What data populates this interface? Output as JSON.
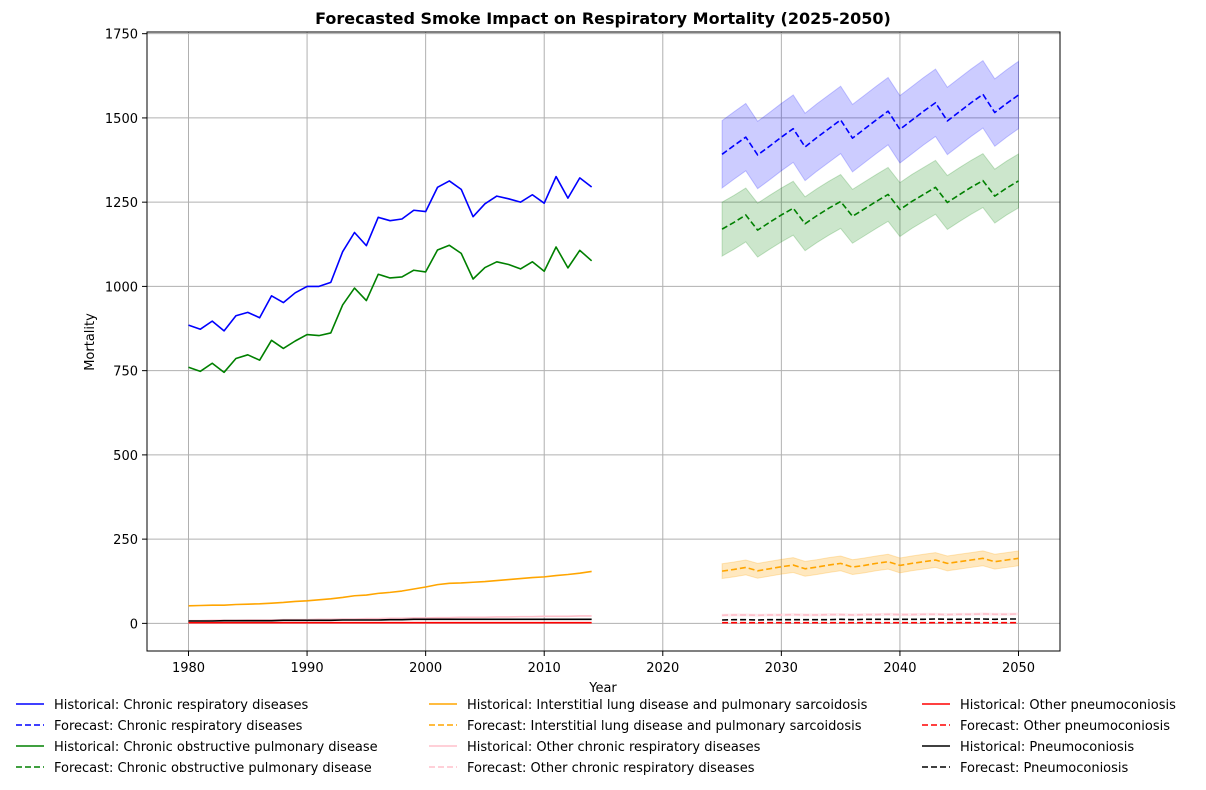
{
  "chart_data": {
    "type": "line",
    "title": "Forecasted Smoke Impact on Respiratory Mortality (2025-2050)",
    "xlabel": "Year",
    "ylabel": "Mortality",
    "xlim": [
      1976.5,
      2053.5
    ],
    "ylim": [
      -82,
      1755
    ],
    "xticks": [
      1980,
      1990,
      2000,
      2010,
      2020,
      2030,
      2040,
      2050
    ],
    "yticks": [
      0,
      250,
      500,
      750,
      1000,
      1250,
      1500,
      1750
    ],
    "grid": true,
    "legend_position": "bottom",
    "historical_x": [
      1980,
      1981,
      1982,
      1983,
      1984,
      1985,
      1986,
      1987,
      1988,
      1989,
      1990,
      1991,
      1992,
      1993,
      1994,
      1995,
      1996,
      1997,
      1998,
      1999,
      2000,
      2001,
      2002,
      2003,
      2004,
      2005,
      2006,
      2007,
      2008,
      2009,
      2010,
      2011,
      2012,
      2013,
      2014
    ],
    "forecast_x": [
      2025,
      2026,
      2027,
      2028,
      2029,
      2030,
      2031,
      2032,
      2033,
      2034,
      2035,
      2036,
      2037,
      2038,
      2039,
      2040,
      2041,
      2042,
      2043,
      2044,
      2045,
      2046,
      2047,
      2048,
      2049,
      2050
    ],
    "series": [
      {
        "name": "Historical: Chronic respiratory diseases",
        "kind": "historical",
        "color": "#0000ff",
        "values": [
          885,
          873,
          897,
          868,
          913,
          923,
          907,
          972,
          952,
          981,
          1000,
          1000,
          1012,
          1103,
          1160,
          1121,
          1205,
          1195,
          1200,
          1226,
          1222,
          1294,
          1313,
          1288,
          1207,
          1245,
          1268,
          1260,
          1250,
          1272,
          1247,
          1326,
          1262,
          1322,
          1295
        ]
      },
      {
        "name": "Forecast: Chronic respiratory diseases",
        "kind": "forecast",
        "color": "#0000ff",
        "values": [
          1392,
          1418,
          1443,
          1390,
          1416,
          1443,
          1468,
          1414,
          1442,
          1468,
          1494,
          1440,
          1467,
          1494,
          1520,
          1466,
          1493,
          1520,
          1545,
          1491,
          1518,
          1545,
          1570,
          1516,
          1543,
          1568
        ],
        "band": {
          "lower_offset": 100,
          "upper_offset": 100,
          "color": "#0000ff",
          "alpha": 0.2
        }
      },
      {
        "name": "Historical: Chronic obstructive pulmonary disease",
        "kind": "historical",
        "color": "#008000",
        "values": [
          760,
          748,
          772,
          745,
          786,
          797,
          781,
          840,
          816,
          838,
          857,
          854,
          862,
          945,
          995,
          958,
          1036,
          1025,
          1028,
          1048,
          1043,
          1108,
          1122,
          1098,
          1022,
          1056,
          1073,
          1065,
          1052,
          1073,
          1045,
          1117,
          1055,
          1107,
          1076
        ]
      },
      {
        "name": "Forecast: Chronic obstructive pulmonary disease",
        "kind": "forecast",
        "color": "#008000",
        "values": [
          1170,
          1190,
          1212,
          1167,
          1190,
          1212,
          1232,
          1186,
          1210,
          1232,
          1252,
          1208,
          1230,
          1252,
          1273,
          1228,
          1252,
          1273,
          1294,
          1249,
          1272,
          1294,
          1314,
          1268,
          1292,
          1313
        ],
        "band": {
          "lower_offset": 80,
          "upper_offset": 80,
          "color": "#008000",
          "alpha": 0.2
        }
      },
      {
        "name": "Historical: Interstitial lung disease and pulmonary sarcoidosis",
        "kind": "historical",
        "color": "#ffa500",
        "values": [
          52,
          53,
          54,
          54,
          56,
          57,
          58,
          60,
          62,
          65,
          67,
          70,
          73,
          77,
          82,
          84,
          89,
          92,
          96,
          102,
          108,
          115,
          119,
          120,
          122,
          124,
          127,
          130,
          133,
          136,
          138,
          142,
          145,
          149,
          154
        ]
      },
      {
        "name": "Forecast: Interstitial lung disease and pulmonary sarcoidosis",
        "kind": "forecast",
        "color": "#ffa500",
        "values": [
          155,
          160,
          166,
          156,
          162,
          168,
          173,
          162,
          167,
          173,
          178,
          167,
          172,
          178,
          183,
          172,
          178,
          183,
          188,
          178,
          183,
          188,
          193,
          183,
          188,
          193
        ],
        "band": {
          "lower_offset": 22,
          "upper_offset": 22,
          "color": "#ffa500",
          "alpha": 0.25
        }
      },
      {
        "name": "Historical: Other chronic respiratory diseases",
        "kind": "historical",
        "color": "#ffc0cb",
        "values": [
          8,
          8,
          9,
          9,
          9,
          10,
          10,
          10,
          11,
          11,
          11,
          12,
          12,
          13,
          13,
          14,
          14,
          15,
          15,
          16,
          16,
          17,
          17,
          18,
          18,
          18,
          19,
          19,
          20,
          20,
          21,
          21,
          21,
          22,
          22
        ]
      },
      {
        "name": "Forecast: Other chronic respiratory diseases",
        "kind": "forecast",
        "color": "#ffc0cb",
        "values": [
          24,
          25,
          25,
          24,
          25,
          25,
          26,
          25,
          25,
          26,
          26,
          25,
          26,
          26,
          27,
          26,
          26,
          27,
          27,
          26,
          27,
          27,
          28,
          27,
          27,
          28
        ],
        "band": {
          "lower_offset": 3,
          "upper_offset": 3,
          "color": "#ffc0cb",
          "alpha": 0.25
        }
      },
      {
        "name": "Historical: Other pneumoconiosis",
        "kind": "historical",
        "color": "#ff0000",
        "values": [
          2,
          2,
          2,
          2,
          2,
          2,
          2,
          2,
          2,
          2,
          2,
          2,
          2,
          2,
          2,
          2,
          2,
          2,
          2,
          2,
          2,
          2,
          2,
          2,
          2,
          2,
          2,
          2,
          2,
          2,
          2,
          2,
          2,
          2,
          2
        ]
      },
      {
        "name": "Forecast: Other pneumoconiosis",
        "kind": "forecast",
        "color": "#ff0000",
        "values": [
          2,
          2,
          2,
          2,
          2,
          2,
          2,
          2,
          2,
          2,
          2,
          2,
          2,
          2,
          2,
          2,
          2,
          2,
          2,
          2,
          2,
          2,
          2,
          2,
          2,
          2
        ]
      },
      {
        "name": "Historical: Pneumoconiosis",
        "kind": "historical",
        "color": "#000000",
        "values": [
          7,
          7,
          7,
          8,
          8,
          8,
          8,
          8,
          9,
          9,
          9,
          9,
          9,
          10,
          10,
          10,
          10,
          11,
          11,
          12,
          12,
          12,
          12,
          12,
          12,
          12,
          12,
          12,
          12,
          12,
          12,
          12,
          12,
          12,
          12
        ]
      },
      {
        "name": "Forecast: Pneumoconiosis",
        "kind": "forecast",
        "color": "#000000",
        "values": [
          10,
          11,
          11,
          10,
          11,
          11,
          11,
          11,
          11,
          11,
          12,
          11,
          12,
          12,
          12,
          12,
          12,
          12,
          13,
          12,
          12,
          13,
          13,
          12,
          13,
          13
        ]
      }
    ],
    "legend_columns": [
      [
        0,
        1,
        2,
        3
      ],
      [
        4,
        5,
        6,
        7
      ],
      [
        8,
        9,
        10,
        11
      ]
    ]
  }
}
